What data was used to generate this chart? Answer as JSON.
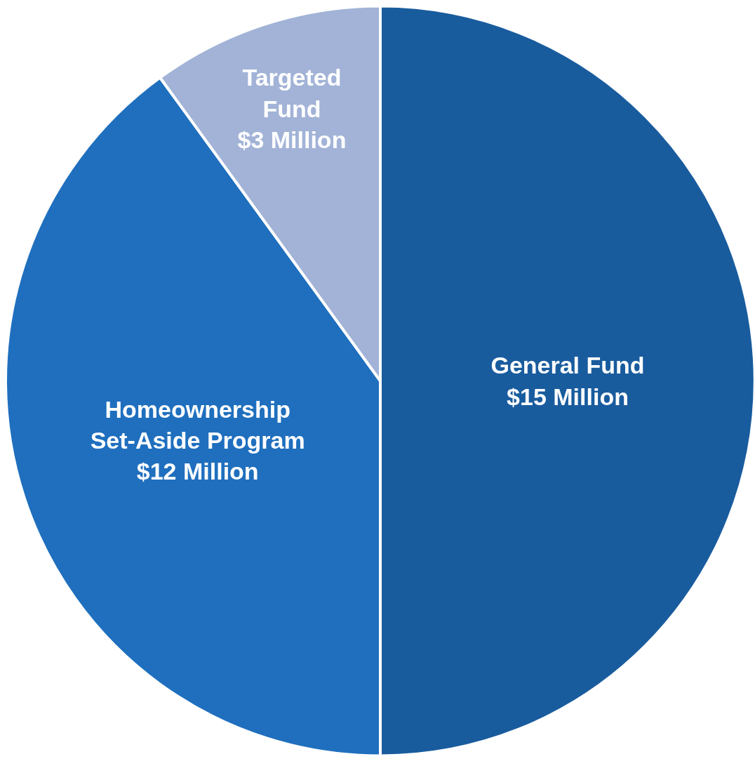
{
  "chart_data": {
    "type": "pie",
    "categories": [
      "General Fund",
      "Homeownership Set-Aside Program",
      "Targeted Fund"
    ],
    "values": [
      15,
      12,
      3
    ],
    "value_labels": [
      "$15 Million",
      "$12 Million",
      "$3 Million"
    ],
    "colors": [
      "#195c9e",
      "#1f6fbe",
      "#a2b3d7"
    ],
    "legend": false
  }
}
